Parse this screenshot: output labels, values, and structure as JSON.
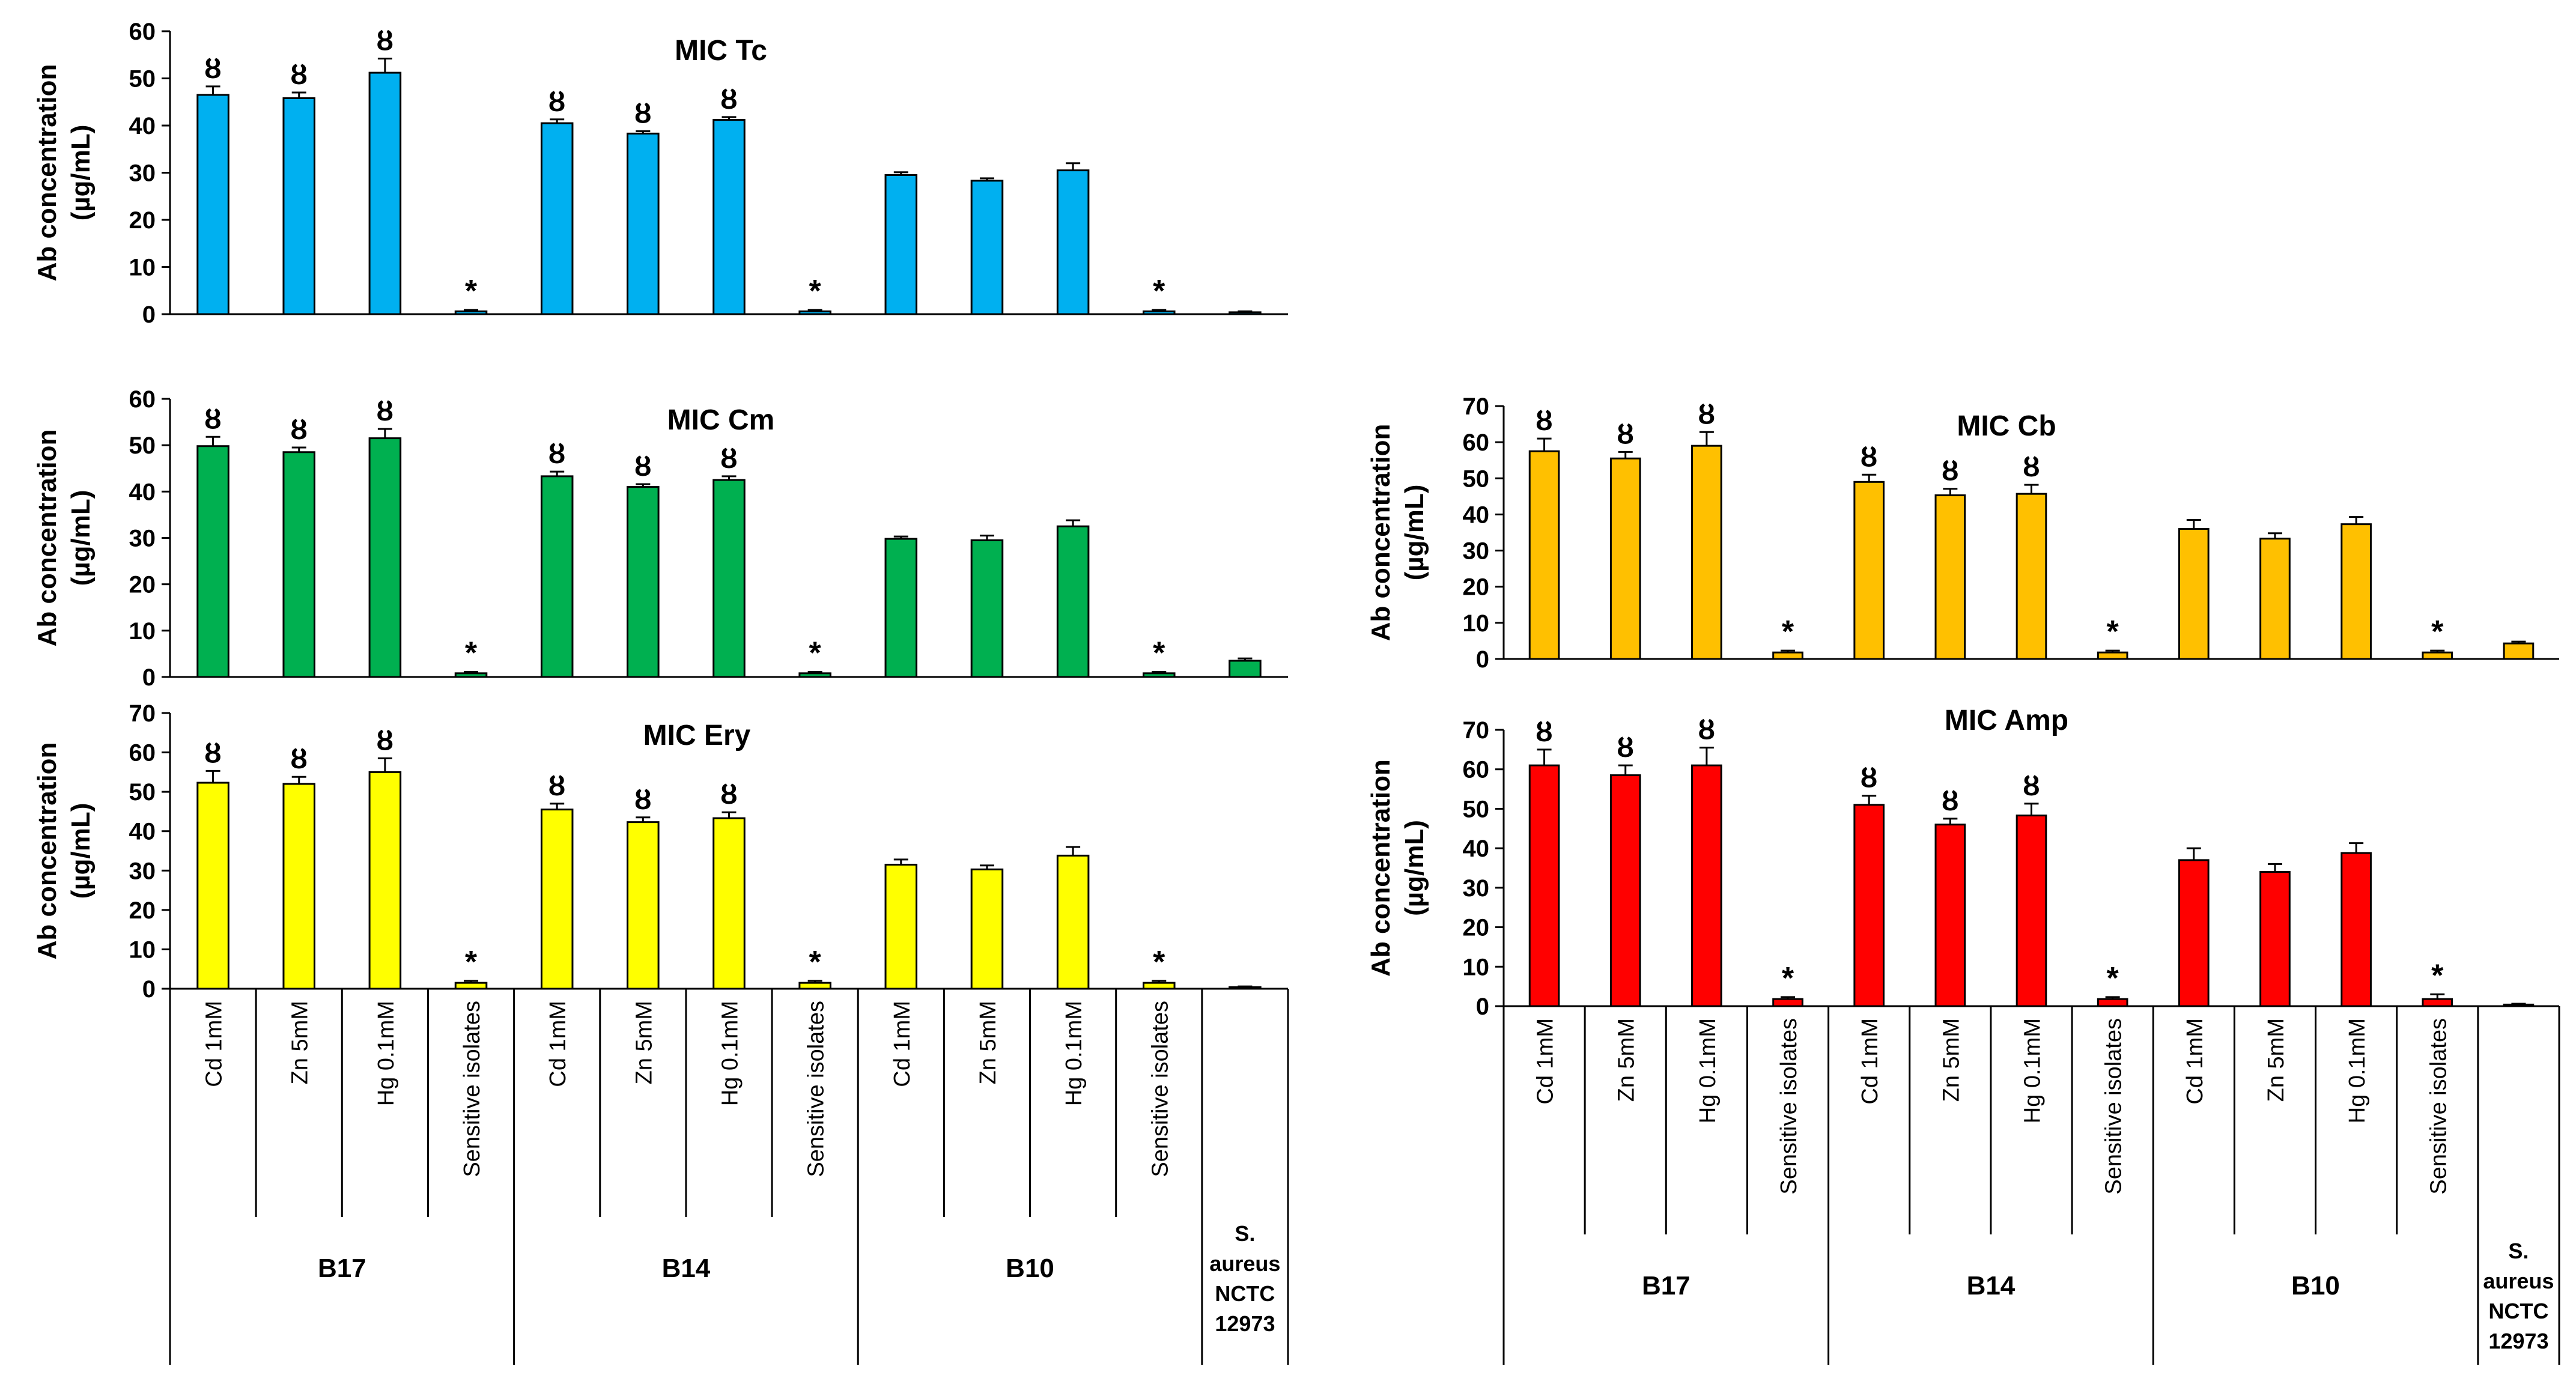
{
  "shared": {
    "ylabel_line1": "Ab concentration",
    "ylabel_line2": "(µg/mL)",
    "strains": [
      "B17",
      "B14",
      "B10"
    ],
    "conditions": [
      "Cd 1mM",
      "Zn 5mM",
      "Hg 0.1mM",
      "Sensitive isolates"
    ],
    "control_label": [
      "S.",
      "aureus",
      "NCTC",
      "12973"
    ],
    "resistance_marker": "ȣ",
    "significance_marker": "*"
  },
  "chart_data": [
    {
      "id": "tc",
      "type": "bar",
      "title": "MIC Tc",
      "color": "#00B0F0",
      "ylim": [
        0,
        60
      ],
      "yticks": [
        0,
        10,
        20,
        30,
        40,
        50,
        60
      ],
      "categories": [
        "B17 Cd 1mM",
        "B17 Zn 5mM",
        "B17 Hg 0.1mM",
        "B17 Sensitive isolates",
        "B14 Cd 1mM",
        "B14 Zn 5mM",
        "B14 Hg 0.1mM",
        "B14 Sensitive isolates",
        "B10 Cd 1mM",
        "B10 Zn 5mM",
        "B10 Hg 0.1mM",
        "B10 Sensitive isolates",
        "S. aureus NCTC 12973"
      ],
      "values": [
        46.5,
        45.8,
        51.2,
        0.6,
        40.5,
        38.3,
        41.2,
        0.6,
        29.5,
        28.3,
        30.5,
        0.6,
        0.4
      ],
      "errors": [
        1.8,
        1.2,
        3.0,
        0.3,
        0.8,
        0.5,
        0.6,
        0.3,
        0.6,
        0.5,
        1.5,
        0.3,
        0.2
      ],
      "markers": [
        "ȣ",
        "ȣ",
        "ȣ",
        "*",
        "ȣ",
        "ȣ",
        "ȣ",
        "*",
        "",
        "",
        "",
        "*",
        ""
      ]
    },
    {
      "id": "cm",
      "type": "bar",
      "title": "MIC Cm",
      "color": "#00B050",
      "ylim": [
        0,
        60
      ],
      "yticks": [
        0,
        10,
        20,
        30,
        40,
        50,
        60
      ],
      "categories": [
        "B17 Cd 1mM",
        "B17 Zn 5mM",
        "B17 Hg 0.1mM",
        "B17 Sensitive isolates",
        "B14 Cd 1mM",
        "B14 Zn 5mM",
        "B14 Hg 0.1mM",
        "B14 Sensitive isolates",
        "B10 Cd 1mM",
        "B10 Zn 5mM",
        "B10 Hg 0.1mM",
        "B10 Sensitive isolates",
        "S. aureus NCTC 12973"
      ],
      "values": [
        49.8,
        48.5,
        51.5,
        0.8,
        43.3,
        41.0,
        42.5,
        0.8,
        29.8,
        29.5,
        32.5,
        0.8,
        3.5
      ],
      "errors": [
        2.0,
        1.0,
        2.0,
        0.3,
        1.0,
        0.6,
        0.8,
        0.3,
        0.5,
        1.0,
        1.3,
        0.3,
        0.5
      ],
      "markers": [
        "ȣ",
        "ȣ",
        "ȣ",
        "*",
        "ȣ",
        "ȣ",
        "ȣ",
        "*",
        "",
        "",
        "",
        "*",
        ""
      ]
    },
    {
      "id": "ery",
      "type": "bar",
      "title": "MIC Ery",
      "color": "#FFFF00",
      "ylim": [
        0,
        70
      ],
      "yticks": [
        0,
        10,
        20,
        30,
        40,
        50,
        60,
        70
      ],
      "categories": [
        "B17 Cd 1mM",
        "B17 Zn 5mM",
        "B17 Hg 0.1mM",
        "B17 Sensitive isolates",
        "B14 Cd 1mM",
        "B14 Zn 5mM",
        "B14 Hg 0.1mM",
        "B14 Sensitive isolates",
        "B10 Cd 1mM",
        "B10 Zn 5mM",
        "B10 Hg 0.1mM",
        "B10 Sensitive isolates",
        "S. aureus NCTC 12973"
      ],
      "values": [
        52.3,
        52.0,
        55.0,
        1.5,
        45.5,
        42.3,
        43.3,
        1.5,
        31.5,
        30.3,
        33.8,
        1.5,
        0.4
      ],
      "errors": [
        3.0,
        1.8,
        3.5,
        0.5,
        1.5,
        1.2,
        1.5,
        0.5,
        1.3,
        1.0,
        2.2,
        0.5,
        0.2
      ],
      "markers": [
        "ȣ",
        "ȣ",
        "ȣ",
        "*",
        "ȣ",
        "ȣ",
        "ȣ",
        "*",
        "",
        "",
        "",
        "*",
        ""
      ]
    },
    {
      "id": "cb",
      "type": "bar",
      "title": "MIC Cb",
      "color": "#FFC000",
      "ylim": [
        0,
        70
      ],
      "yticks": [
        0,
        10,
        20,
        30,
        40,
        50,
        60,
        70
      ],
      "categories": [
        "B17 Cd 1mM",
        "B17 Zn 5mM",
        "B17 Hg 0.1mM",
        "B17 Sensitive isolates",
        "B14 Cd 1mM",
        "B14 Zn 5mM",
        "B14 Hg 0.1mM",
        "B14 Sensitive isolates",
        "B10 Cd 1mM",
        "B10 Zn 5mM",
        "B10 Hg 0.1mM",
        "B10 Sensitive isolates",
        "S. aureus NCTC 12973"
      ],
      "values": [
        57.5,
        55.5,
        59.0,
        1.8,
        49.0,
        45.3,
        45.7,
        1.8,
        36.0,
        33.3,
        37.3,
        1.8,
        4.3
      ],
      "errors": [
        3.5,
        1.8,
        3.8,
        0.5,
        2.0,
        1.8,
        2.5,
        0.5,
        2.5,
        1.5,
        2.0,
        0.5,
        0.5
      ],
      "markers": [
        "ȣ",
        "ȣ",
        "ȣ",
        "*",
        "ȣ",
        "ȣ",
        "ȣ",
        "*",
        "",
        "",
        "",
        "*",
        ""
      ]
    },
    {
      "id": "amp",
      "type": "bar",
      "title": "MIC Amp",
      "color": "#FF0000",
      "ylim": [
        0,
        70
      ],
      "yticks": [
        0,
        10,
        20,
        30,
        40,
        50,
        60,
        70
      ],
      "categories": [
        "B17 Cd 1mM",
        "B17 Zn 5mM",
        "B17 Hg 0.1mM",
        "B17 Sensitive isolates",
        "B14 Cd 1mM",
        "B14 Zn 5mM",
        "B14 Hg 0.1mM",
        "B14 Sensitive isolates",
        "B10 Cd 1mM",
        "B10 Zn 5mM",
        "B10 Hg 0.1mM",
        "B10 Sensitive isolates",
        "S. aureus NCTC 12973"
      ],
      "values": [
        61.0,
        58.5,
        61.0,
        1.8,
        51.0,
        46.0,
        48.3,
        1.8,
        37.0,
        34.0,
        38.8,
        1.8,
        0.4
      ],
      "errors": [
        4.0,
        2.5,
        4.5,
        0.5,
        2.3,
        1.5,
        3.0,
        0.5,
        3.0,
        2.0,
        2.5,
        1.2,
        0.2
      ],
      "markers": [
        "ȣ",
        "ȣ",
        "ȣ",
        "*",
        "ȣ",
        "ȣ",
        "ȣ",
        "*",
        "",
        "",
        "",
        "*",
        ""
      ]
    }
  ]
}
